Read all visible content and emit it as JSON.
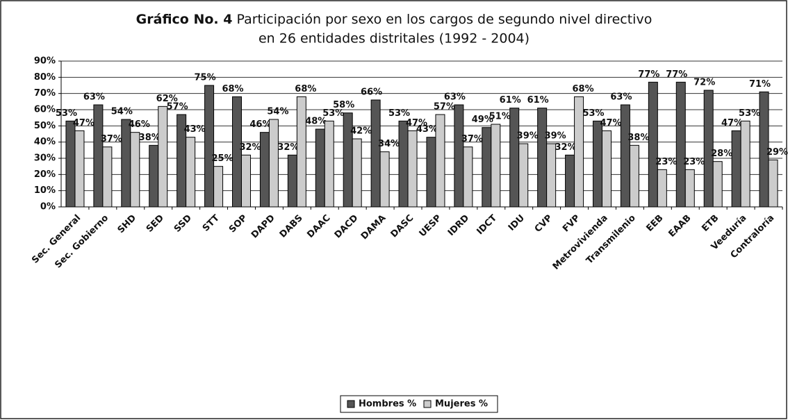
{
  "chart_data": {
    "type": "bar",
    "title_label": "Gráfico No. 4",
    "title": [
      "Participación por sexo en los cargos de segundo nivel directivo",
      "en 26 entidades distritales (1992 - 2004)"
    ],
    "categories": [
      "Sec. General",
      "Sec. Gobierno",
      "SHD",
      "SED",
      "SSD",
      "STT",
      "SOP",
      "DAPD",
      "DABS",
      "DAAC",
      "DACD",
      "DAMA",
      "DASC",
      "UESP",
      "IDRD",
      "IDCT",
      "IDU",
      "CVP",
      "FVP",
      "Metrovivienda",
      "Transmilenio",
      "EEB",
      "EAAB",
      "ETB",
      "Veeduría",
      "Contraloría"
    ],
    "series": [
      {
        "name": "Hombres %",
        "color": "#555555",
        "values": [
          53,
          63,
          54,
          38,
          57,
          75,
          68,
          46,
          32,
          48,
          58,
          66,
          53,
          43,
          63,
          49,
          61,
          61,
          32,
          53,
          63,
          77,
          77,
          72,
          47,
          71
        ],
        "value_labels": [
          "53%",
          "63%",
          "54%",
          "38%",
          "57%",
          "75%",
          "68%",
          "46%",
          "32%",
          "48%",
          "58%",
          "66%",
          "53%",
          "43%",
          "63%",
          "49%",
          "61%",
          "61%",
          "32%",
          "53%",
          "63%",
          "77%",
          "77%",
          "72%",
          "47%",
          "71%"
        ]
      },
      {
        "name": "Mujeres %",
        "color": "#cccccc",
        "values": [
          47,
          37,
          46,
          62,
          43,
          25,
          32,
          54,
          68,
          53,
          42,
          34,
          47,
          57,
          37,
          51,
          39,
          39,
          68,
          47,
          38,
          23,
          23,
          28,
          53,
          29
        ],
        "value_labels": [
          "47%",
          "37%",
          "46%",
          "62%",
          "43%",
          "25%",
          "32%",
          "54%",
          "68%",
          "53%",
          "42%",
          "34%",
          "47%",
          "57%",
          "37%",
          "51%",
          "39%",
          "39%",
          "68%",
          "47%",
          "38%",
          "23%",
          "23%",
          "28%",
          "53%",
          "29%"
        ]
      }
    ],
    "ylim": [
      0,
      90
    ],
    "yticks": [
      {
        "value": 0,
        "label": "0%"
      },
      {
        "value": 10,
        "label": "10%"
      },
      {
        "value": 20,
        "label": "20%"
      },
      {
        "value": 30,
        "label": "30%"
      },
      {
        "value": 40,
        "label": "40%"
      },
      {
        "value": 50,
        "label": "50%"
      },
      {
        "value": 60,
        "label": "60%"
      },
      {
        "value": 70,
        "label": "70%"
      },
      {
        "value": 80,
        "label": "80%"
      },
      {
        "value": 90,
        "label": "90%"
      }
    ],
    "grid": true,
    "legend": "bottom"
  }
}
